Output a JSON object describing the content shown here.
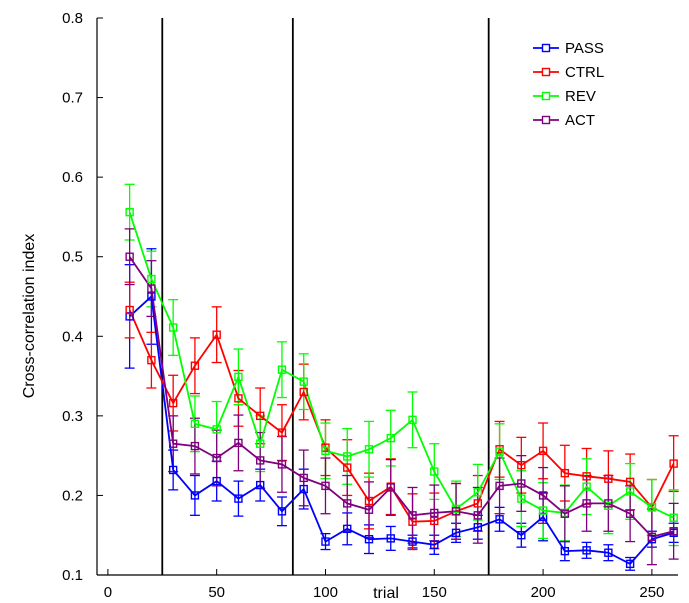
{
  "chart_data": {
    "type": "line",
    "title": "",
    "xlabel": "trial",
    "ylabel": "Cross-correlation index",
    "xlim": [
      -5,
      262
    ],
    "ylim": [
      0.1,
      0.8
    ],
    "xticks": [
      0,
      50,
      100,
      150,
      200,
      250
    ],
    "yticks": [
      0.1,
      0.2,
      0.3,
      0.4,
      0.5,
      0.6,
      0.7,
      0.8
    ],
    "xtick_labels": [
      "0",
      "50",
      "100",
      "150",
      "200",
      "250"
    ],
    "ytick_labels": [
      "0.1",
      "0.2",
      "0.3",
      "0.4",
      "0.5",
      "0.6",
      "0.7",
      "0.8"
    ],
    "vertical_lines": [
      25,
      85,
      175
    ],
    "grid": false,
    "legend_position": "top-right",
    "x": [
      10,
      20,
      30,
      40,
      50,
      60,
      70,
      80,
      90,
      100,
      110,
      120,
      130,
      140,
      150,
      160,
      170,
      180,
      190,
      200,
      210,
      220,
      230,
      240,
      250,
      260
    ],
    "series": [
      {
        "name": "PASS",
        "color": "#0000ff",
        "values": [
          0.425,
          0.45,
          0.232,
          0.2,
          0.218,
          0.196,
          0.213,
          0.18,
          0.208,
          0.142,
          0.158,
          0.145,
          0.146,
          0.142,
          0.138,
          0.153,
          0.16,
          0.17,
          0.15,
          0.173,
          0.13,
          0.131,
          0.128,
          0.114,
          0.145,
          0.153
        ],
        "errors": [
          0.065,
          0.06,
          0.025,
          0.025,
          0.025,
          0.022,
          0.02,
          0.018,
          0.025,
          0.01,
          0.02,
          0.018,
          0.015,
          0.008,
          0.012,
          0.012,
          0.015,
          0.015,
          0.015,
          0.03,
          0.012,
          0.01,
          0.01,
          0.008,
          0.01,
          0.012
        ]
      },
      {
        "name": "CTRL",
        "color": "#ff0000",
        "values": [
          0.433,
          0.37,
          0.316,
          0.363,
          0.402,
          0.322,
          0.3,
          0.279,
          0.33,
          0.26,
          0.235,
          0.193,
          0.211,
          0.167,
          0.168,
          0.18,
          0.19,
          0.258,
          0.238,
          0.256,
          0.228,
          0.224,
          0.221,
          0.217,
          0.185,
          0.24
        ]
      },
      {
        "name": "REV",
        "color": "#00ff00",
        "values": [
          0.556,
          0.472,
          0.411,
          0.29,
          0.283,
          0.349,
          0.265,
          0.358,
          0.343,
          0.256,
          0.249,
          0.258,
          0.272,
          0.295,
          0.23,
          0.183,
          0.204,
          0.255,
          0.196,
          0.181,
          0.178,
          0.211,
          0.187,
          0.205,
          0.185,
          0.172
        ]
      },
      {
        "name": "ACT",
        "color": "#800080",
        "values": [
          0.5,
          0.46,
          0.265,
          0.262,
          0.247,
          0.266,
          0.244,
          0.239,
          0.222,
          0.212,
          0.19,
          0.182,
          0.21,
          0.175,
          0.178,
          0.18,
          0.175,
          0.212,
          0.215,
          0.2,
          0.177,
          0.19,
          0.19,
          0.177,
          0.148,
          0.155
        ]
      }
    ]
  }
}
